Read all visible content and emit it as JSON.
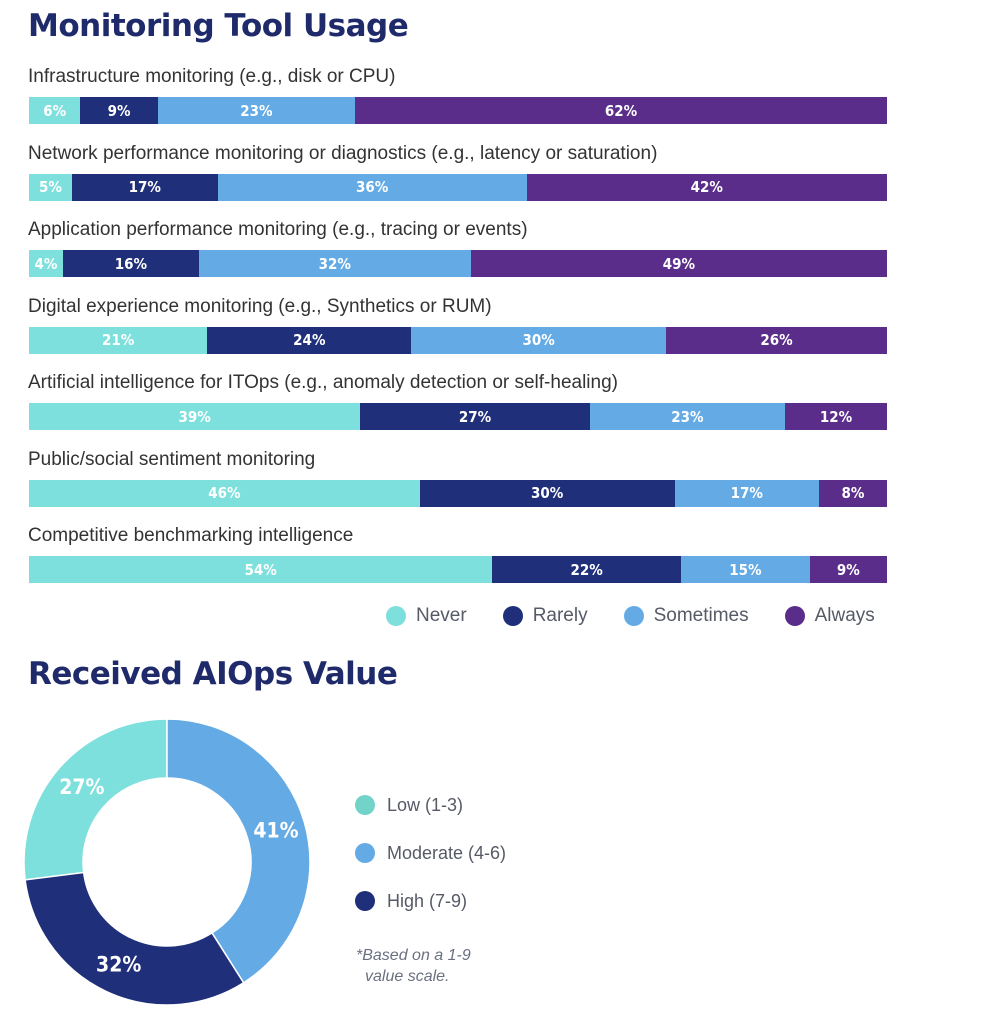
{
  "chart_data": [
    {
      "type": "bar",
      "orientation": "horizontal",
      "stacked": true,
      "title": "Monitoring Tool Usage",
      "categories": [
        "Infrastructure monitoring (e.g., disk or CPU)",
        "Network performance monitoring or diagnostics (e.g., latency or saturation)",
        "Application performance monitoring (e.g., tracing or events)",
        "Digital experience monitoring (e.g., Synthetics or RUM)",
        "Artificial intelligence for ITOps (e.g., anomaly detection or self-healing)",
        "Public/social sentiment monitoring",
        "Competitive benchmarking intelligence"
      ],
      "series": [
        {
          "name": "Never",
          "color": "#7ee0dd",
          "values": [
            6,
            5,
            4,
            21,
            39,
            46,
            54
          ]
        },
        {
          "name": "Rarely",
          "color": "#1f2f7a",
          "values": [
            9,
            17,
            16,
            24,
            27,
            30,
            22
          ]
        },
        {
          "name": "Sometimes",
          "color": "#64abe6",
          "values": [
            23,
            36,
            32,
            30,
            23,
            17,
            15
          ]
        },
        {
          "name": "Always",
          "color": "#5a2d8a",
          "values": [
            62,
            42,
            49,
            26,
            12,
            8,
            9
          ]
        }
      ],
      "value_suffix": "%",
      "legend": [
        "Never",
        "Rarely",
        "Sometimes",
        "Always"
      ],
      "legend_position": "bottom-right"
    },
    {
      "type": "pie",
      "donut": true,
      "title": "Received AIOps Value",
      "labels": [
        "Low (1-3)",
        "Moderate (4-6)",
        "High (7-9)"
      ],
      "values": [
        27,
        41,
        32
      ],
      "colors": [
        "#7ee0dd",
        "#64abe6",
        "#1f2f7a"
      ],
      "value_suffix": "%",
      "legend_colors": [
        "#72d3c8",
        "#64abe6",
        "#1f2f7a"
      ],
      "legend_position": "right",
      "footnote": [
        "*Based on a 1-9",
        "value scale."
      ]
    }
  ]
}
